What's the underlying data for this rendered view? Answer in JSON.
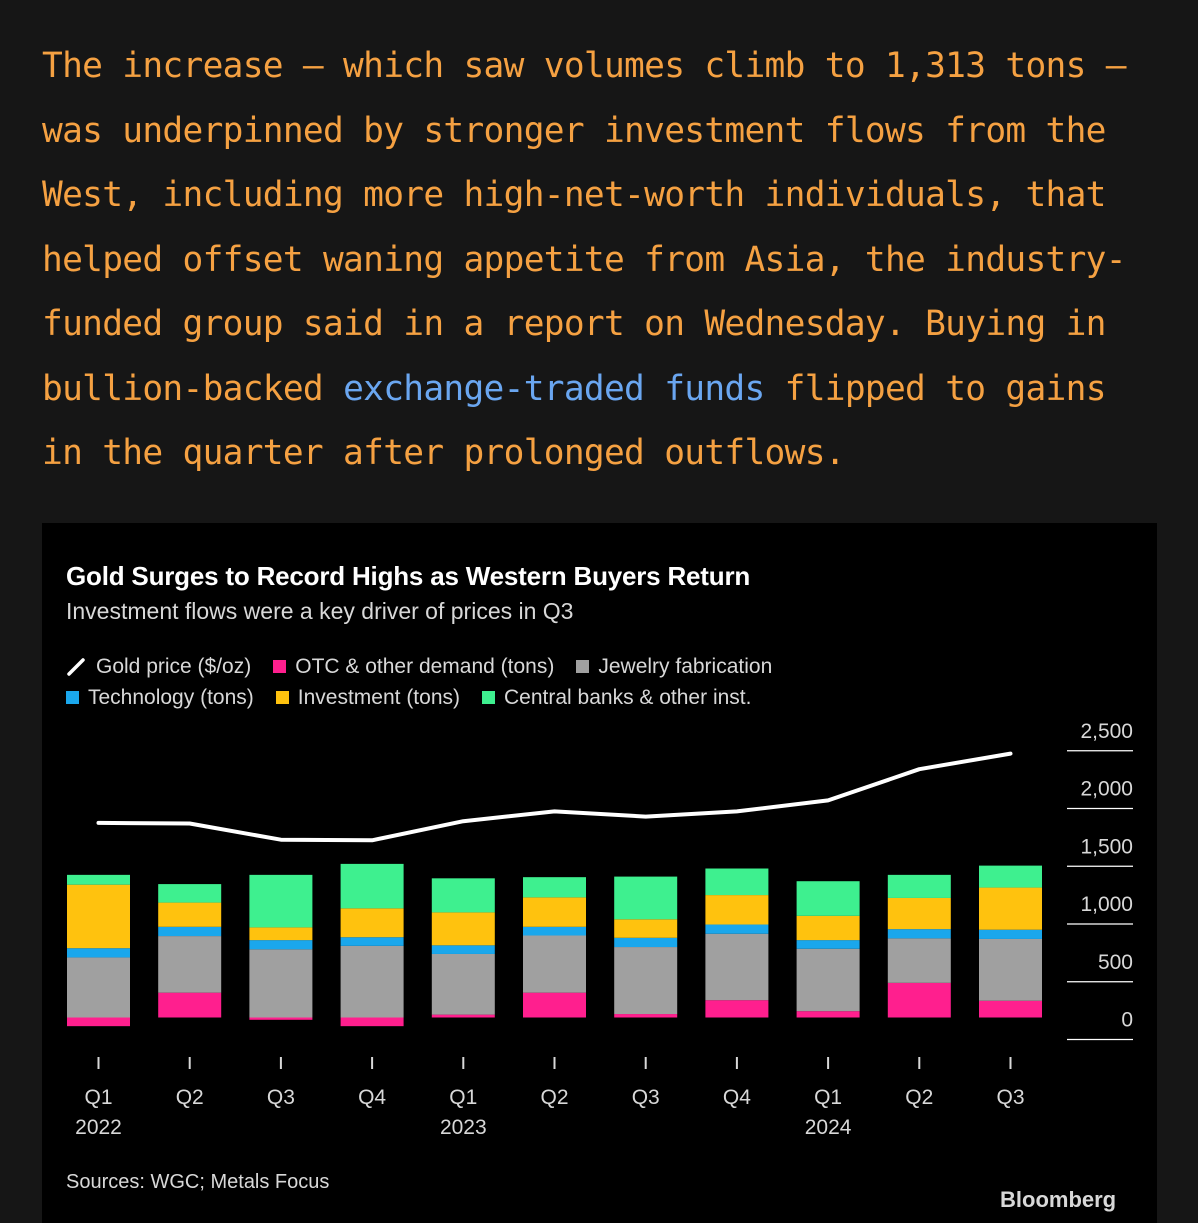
{
  "article": {
    "text_before_link": "The increase – which saw volumes climb to 1,313 tons – was underpinned by stronger investment flows from the West, including more high-net-worth individuals, that helped offset waning appetite from Asia, the industry-funded group said in a report on Wednesday. Buying in bullion-backed ",
    "link_text": "exchange-traded funds",
    "text_after_link": " flipped to gains in the quarter after prolonged outflows."
  },
  "chart": {
    "title": "Gold Surges to Record Highs as Western Buyers Return",
    "subtitle": "Investment flows were a key driver of prices in Q3",
    "source": "Sources: WGC; Metals Focus",
    "brand": "Bloomberg"
  },
  "chart_data": {
    "type": "bar",
    "stacked": true,
    "categories": [
      "Q1",
      "Q2",
      "Q3",
      "Q4",
      "Q1",
      "Q2",
      "Q3",
      "Q4",
      "Q1",
      "Q2",
      "Q3"
    ],
    "year_labels": [
      {
        "index": 0,
        "label": "2022"
      },
      {
        "index": 4,
        "label": "2023"
      },
      {
        "index": 8,
        "label": "2024"
      }
    ],
    "ylim": [
      -200,
      2600
    ],
    "yticks": [
      0,
      500,
      1000,
      1500,
      2000,
      2500
    ],
    "ytick_labels": [
      "0",
      "500",
      "1,000",
      "1,500",
      "2,000",
      "2,500"
    ],
    "legend_placement": "top-left",
    "legend": [
      {
        "label": "Gold price ($/oz)",
        "color": "#ffffff",
        "kind": "line"
      },
      {
        "label": "OTC & other demand (tons)",
        "color": "#ff1f8e",
        "kind": "bar"
      },
      {
        "label": "Jewelry fabrication",
        "color": "#a0a0a0",
        "kind": "bar"
      },
      {
        "label": "Technology (tons)",
        "color": "#1aa7ec",
        "kind": "bar"
      },
      {
        "label": "Investment (tons)",
        "color": "#ffc20e",
        "kind": "bar"
      },
      {
        "label": "Central banks & other inst.",
        "color": "#3ef08f",
        "kind": "bar"
      }
    ],
    "series": [
      {
        "name": "OTC & other demand (tons)",
        "color": "#ff1f8e",
        "values": [
          -75,
          215,
          -20,
          -75,
          25,
          215,
          30,
          150,
          55,
          300,
          145
        ]
      },
      {
        "name": "Jewelry fabrication",
        "color": "#a0a0a0",
        "values": [
          520,
          490,
          590,
          620,
          525,
          495,
          580,
          575,
          540,
          385,
          535
        ]
      },
      {
        "name": "Technology (tons)",
        "color": "#1aa7ec",
        "values": [
          80,
          80,
          80,
          75,
          75,
          75,
          80,
          80,
          75,
          80,
          80
        ]
      },
      {
        "name": "Investment (tons)",
        "color": "#ffc20e",
        "values": [
          550,
          210,
          110,
          250,
          285,
          255,
          160,
          255,
          210,
          270,
          365
        ]
      },
      {
        "name": "Central banks & other inst.",
        "color": "#3ef08f",
        "values": [
          85,
          160,
          455,
          385,
          295,
          175,
          370,
          230,
          300,
          200,
          190
        ]
      }
    ],
    "line": {
      "name": "Gold price ($/oz)",
      "color": "#ffffff",
      "values": [
        1875,
        1870,
        1730,
        1725,
        1890,
        1975,
        1930,
        1975,
        2070,
        2340,
        2475
      ]
    }
  }
}
